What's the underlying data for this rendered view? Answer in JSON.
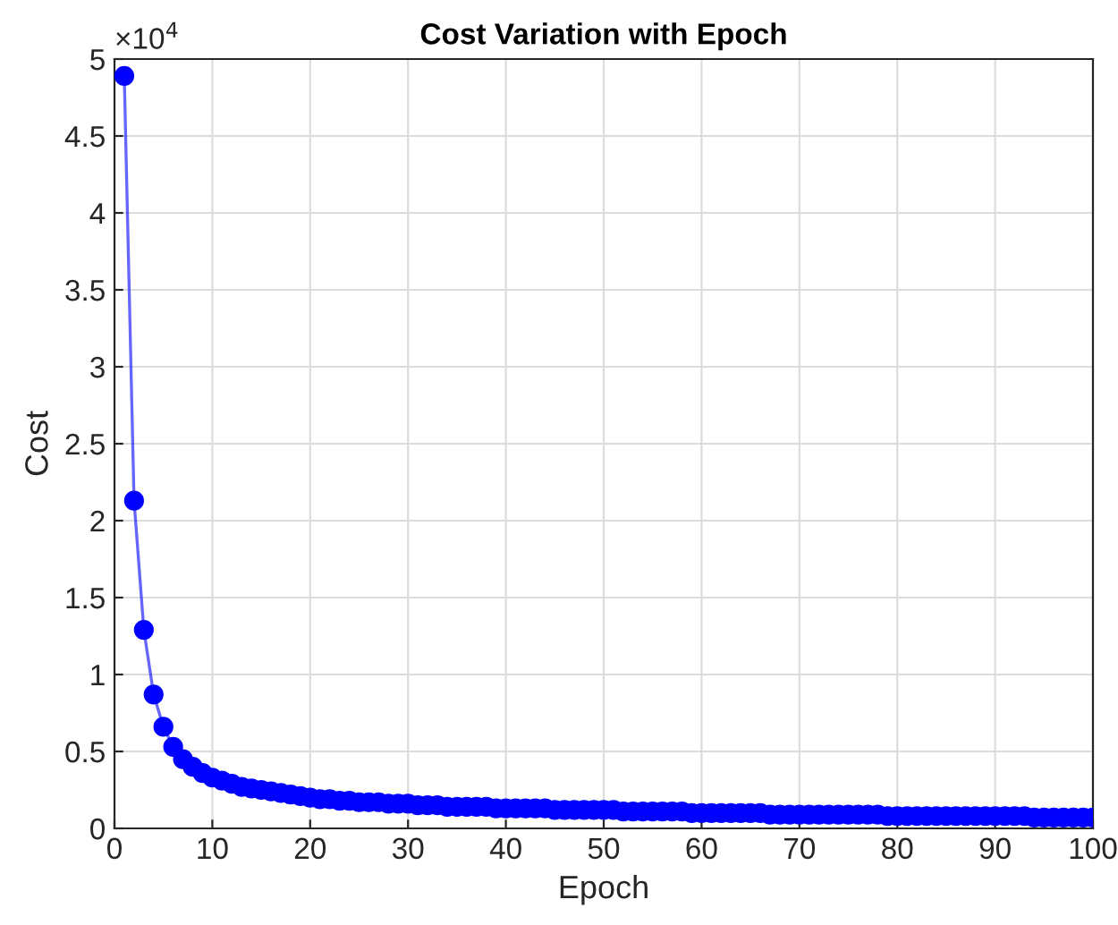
{
  "chart_data": {
    "type": "line",
    "title": "Cost Variation with Epoch",
    "xlabel": "Epoch",
    "ylabel": "Cost",
    "annotations": [
      "×10$^{4}$"
    ],
    "x": [
      1,
      2,
      3,
      4,
      5,
      6,
      7,
      8,
      9,
      10,
      11,
      12,
      13,
      14,
      15,
      16,
      17,
      18,
      19,
      20,
      21,
      22,
      23,
      24,
      25,
      26,
      27,
      28,
      29,
      30,
      31,
      32,
      33,
      34,
      35,
      36,
      37,
      38,
      39,
      40,
      41,
      42,
      43,
      44,
      45,
      46,
      47,
      48,
      49,
      50,
      51,
      52,
      53,
      54,
      55,
      56,
      57,
      58,
      59,
      60,
      61,
      62,
      63,
      64,
      65,
      66,
      67,
      68,
      69,
      70,
      71,
      72,
      73,
      74,
      75,
      76,
      77,
      78,
      79,
      80,
      81,
      82,
      83,
      84,
      85,
      86,
      87,
      88,
      89,
      90,
      91,
      92,
      93,
      94,
      95,
      96,
      97,
      98,
      99,
      100
    ],
    "series": [
      {
        "color": "#0000ff",
        "values": [
          4.89,
          2.13,
          1.29,
          0.87,
          0.66,
          0.53,
          0.45,
          0.4,
          0.36,
          0.33,
          0.31,
          0.29,
          0.27,
          0.26,
          0.25,
          0.24,
          0.23,
          0.22,
          0.21,
          0.2,
          0.19,
          0.19,
          0.18,
          0.18,
          0.17,
          0.17,
          0.17,
          0.16,
          0.16,
          0.16,
          0.15,
          0.15,
          0.15,
          0.14,
          0.14,
          0.14,
          0.14,
          0.14,
          0.13,
          0.13,
          0.13,
          0.13,
          0.13,
          0.13,
          0.12,
          0.12,
          0.12,
          0.12,
          0.12,
          0.12,
          0.12,
          0.11,
          0.11,
          0.11,
          0.11,
          0.11,
          0.11,
          0.11,
          0.1,
          0.1,
          0.1,
          0.1,
          0.1,
          0.1,
          0.1,
          0.1,
          0.09,
          0.09,
          0.09,
          0.09,
          0.09,
          0.09,
          0.09,
          0.09,
          0.09,
          0.09,
          0.09,
          0.09,
          0.08,
          0.08,
          0.08,
          0.08,
          0.08,
          0.08,
          0.08,
          0.08,
          0.08,
          0.08,
          0.08,
          0.08,
          0.08,
          0.08,
          0.08,
          0.07,
          0.07,
          0.07,
          0.07,
          0.07,
          0.07,
          0.07
        ]
      }
    ],
    "xlim": [
      0,
      100
    ],
    "xticks": [
      0,
      10,
      20,
      30,
      40,
      50,
      60,
      70,
      80,
      90,
      100
    ],
    "ylim": [
      0,
      5
    ],
    "yticks": [
      0,
      0.5,
      1,
      1.5,
      2,
      2.5,
      3,
      3.5,
      4,
      4.5,
      5
    ],
    "grid": true,
    "marker": "circle",
    "line_style": "solid",
    "legend": false
  }
}
